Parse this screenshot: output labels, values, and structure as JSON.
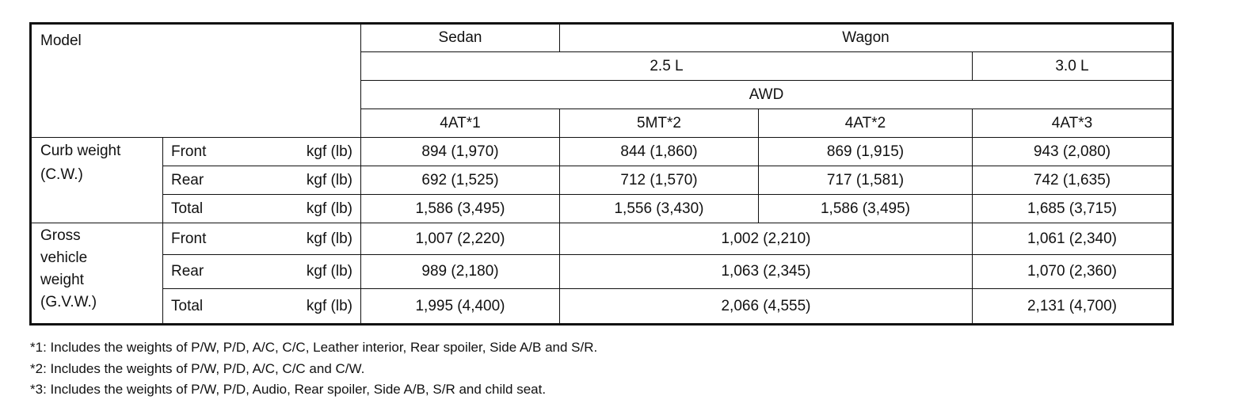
{
  "header": {
    "model": "Model",
    "sedan": "Sedan",
    "wagon": "Wagon",
    "disp_25": "2.5 L",
    "disp_30": "3.0 L",
    "drive": "AWD",
    "trans": [
      "4AT*1",
      "5MT*2",
      "4AT*2",
      "4AT*3"
    ]
  },
  "curb": {
    "label": [
      "Curb weight",
      "(C.W.)"
    ],
    "unit": "kgf (lb)",
    "rows": [
      {
        "name": "Front",
        "values": [
          "894 (1,970)",
          "844 (1,860)",
          "869 (1,915)",
          "943 (2,080)"
        ]
      },
      {
        "name": "Rear",
        "values": [
          "692 (1,525)",
          "712 (1,570)",
          "717 (1,581)",
          "742 (1,635)"
        ]
      },
      {
        "name": "Total",
        "values": [
          "1,586 (3,495)",
          "1,556 (3,430)",
          "1,586 (3,495)",
          "1,685 (3,715)"
        ]
      }
    ]
  },
  "gvw": {
    "label": [
      "Gross",
      "vehicle",
      "weight",
      "(G.V.W.)"
    ],
    "unit": "kgf (lb)",
    "rows": [
      {
        "name": "Front",
        "values": [
          "1,007 (2,220)",
          "1,002 (2,210)",
          "1,061 (2,340)"
        ]
      },
      {
        "name": "Rear",
        "values": [
          "989 (2,180)",
          "1,063 (2,345)",
          "1,070 (2,360)"
        ]
      },
      {
        "name": "Total",
        "values": [
          "1,995 (4,400)",
          "2,066 (4,555)",
          "2,131 (4,700)"
        ]
      }
    ]
  },
  "footnotes": [
    "*1: Includes the weights of P/W, P/D, A/C, C/C, Leather interior, Rear spoiler, Side A/B and S/R.",
    "*2: Includes the weights of P/W, P/D, A/C, C/C and C/W.",
    "*3: Includes the weights of P/W, P/D, Audio, Rear spoiler, Side A/B, S/R and child seat."
  ]
}
